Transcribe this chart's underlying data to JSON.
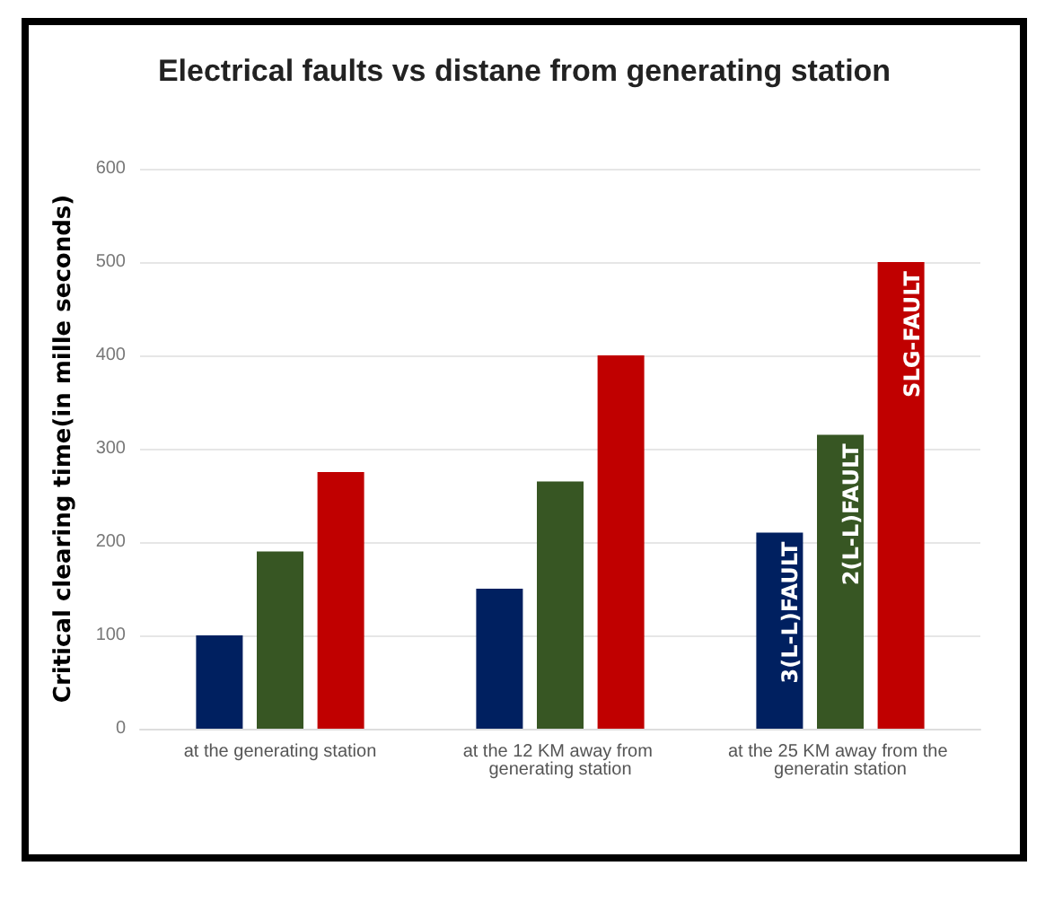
{
  "chart_data": {
    "type": "bar",
    "title": "Electrical faults vs distane from generating station",
    "ylabel": "Critical clearing time(in mille seconds)",
    "categories": [
      "at the generating station",
      "at the 12 KM away from generating station",
      "at the 25 KM away from the generatin station"
    ],
    "series": [
      {
        "name": "3(L-L)FAULT",
        "color": "#002060",
        "values": [
          100,
          150,
          210
        ]
      },
      {
        "name": "2(L-L)FAULT",
        "color": "#375623",
        "values": [
          190,
          265,
          315
        ]
      },
      {
        "name": "SLG-FAULT",
        "color": "#c00000",
        "values": [
          275,
          400,
          500
        ]
      }
    ],
    "ylim": [
      0,
      600
    ],
    "yticks": [
      0,
      100,
      200,
      300,
      400,
      500,
      600
    ],
    "grid": "y",
    "legend": false
  }
}
